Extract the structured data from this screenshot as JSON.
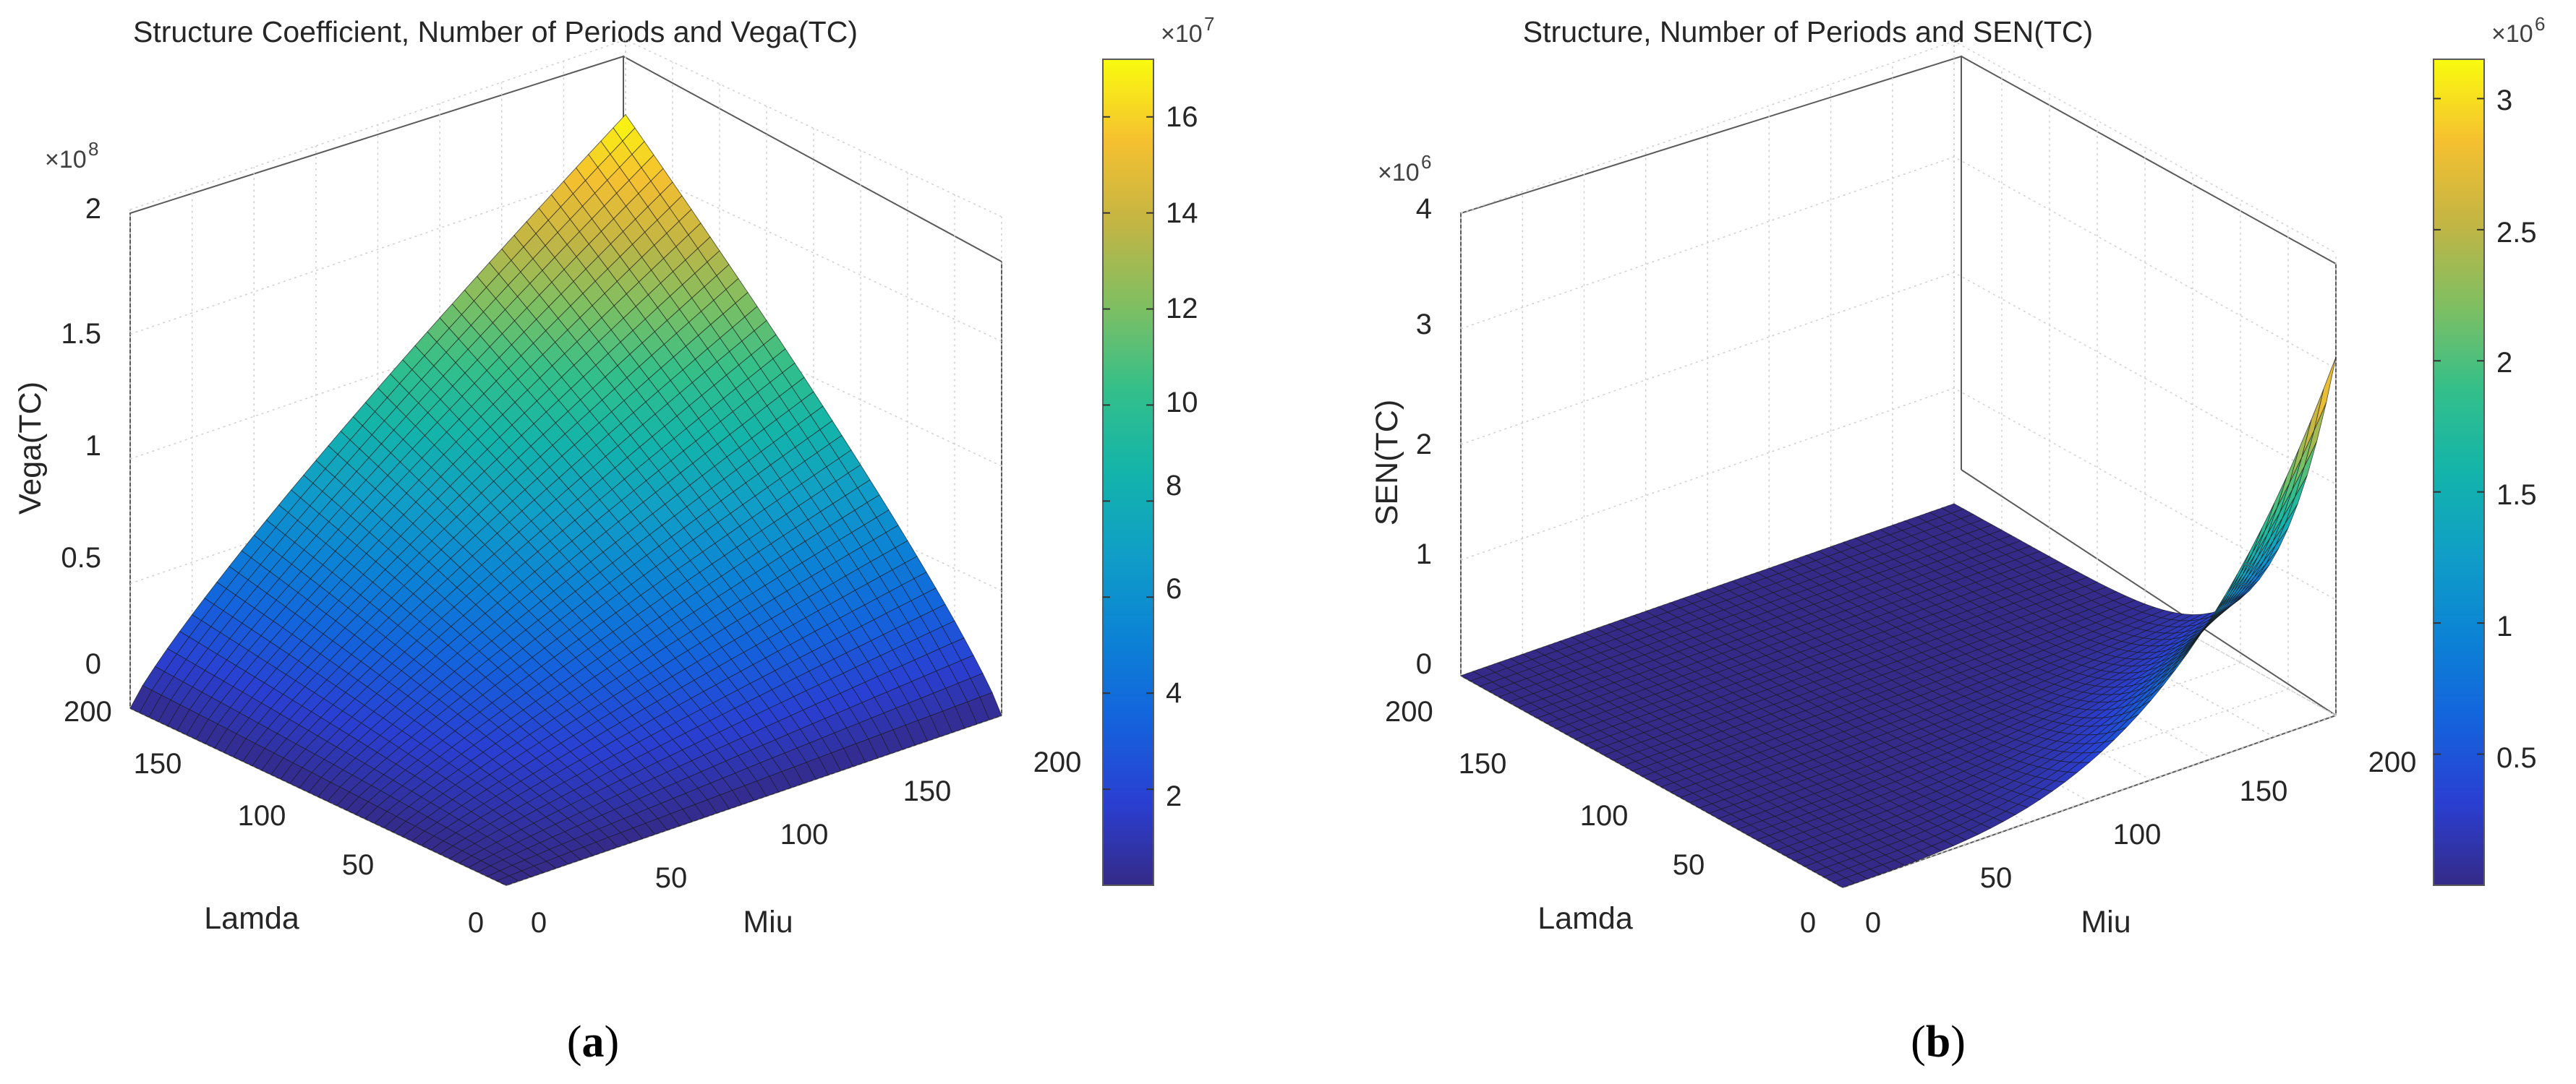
{
  "chart_data": [
    {
      "type": "surface",
      "panel_label": "(a)",
      "panel_letter": "a",
      "title": "Structure Coefficient, Number of Periods and Vega(TC)",
      "xlabel": "Lamda",
      "ylabel": "Miu",
      "zlabel": "Vega(TC)",
      "x_range": [
        0,
        200
      ],
      "y_range": [
        0,
        200
      ],
      "z_range": [
        0,
        200000000.0
      ],
      "x_ticks": [
        "0",
        "50",
        "100",
        "150",
        "200"
      ],
      "y_ticks": [
        "0",
        "50",
        "100",
        "150",
        "200"
      ],
      "z_ticks": [
        "0",
        "0.5",
        "1",
        "1.5",
        "2"
      ],
      "z_exponent_label": "×10",
      "z_exponent": "8",
      "colorbar": {
        "range": [
          0,
          170000000.0
        ],
        "ticks": [
          "2",
          "4",
          "6",
          "8",
          "10",
          "12",
          "14",
          "16"
        ],
        "exponent_label": "×10",
        "exponent": "7"
      },
      "grid": true,
      "surface_description": "Vega(TC) grows with Lamda x Miu; peak ~1.7e8 at Lamda=200, Miu=200",
      "sample_points": [
        {
          "lamda": 0,
          "miu": 0,
          "value": 0
        },
        {
          "lamda": 200,
          "miu": 0,
          "value": 0
        },
        {
          "lamda": 0,
          "miu": 200,
          "value": 0
        },
        {
          "lamda": 100,
          "miu": 100,
          "value": 54000000.0
        },
        {
          "lamda": 200,
          "miu": 100,
          "value": 100000000.0
        },
        {
          "lamda": 100,
          "miu": 200,
          "value": 100000000.0
        },
        {
          "lamda": 200,
          "miu": 200,
          "value": 170000000.0
        }
      ]
    },
    {
      "type": "surface",
      "panel_label": "(b)",
      "panel_letter": "b",
      "title": "Structure, Number of Periods and SEN(TC)",
      "xlabel": "Lamda",
      "ylabel": "Miu",
      "zlabel": "SEN(TC)",
      "x_range": [
        0,
        200
      ],
      "y_range": [
        0,
        200
      ],
      "z_range": [
        0,
        4000000.0
      ],
      "x_ticks": [
        "0",
        "50",
        "100",
        "150",
        "200"
      ],
      "y_ticks": [
        "0",
        "50",
        "100",
        "150",
        "200"
      ],
      "z_ticks": [
        "0",
        "1",
        "2",
        "3",
        "4"
      ],
      "z_exponent_label": "×10",
      "z_exponent": "6",
      "colorbar": {
        "range": [
          0,
          3150000.0
        ],
        "ticks": [
          "0.5",
          "1",
          "1.5",
          "2",
          "2.5",
          "3"
        ],
        "exponent_label": "×10",
        "exponent": "6"
      },
      "grid": true,
      "surface_description": "SEN(TC) is near zero across most of the domain and rises sharply near Lamda=0 as Miu approaches 200, peaking around 3.1e6",
      "sample_points": [
        {
          "lamda": 200,
          "miu": 0,
          "value": 0
        },
        {
          "lamda": 200,
          "miu": 200,
          "value": 0
        },
        {
          "lamda": 0,
          "miu": 0,
          "value": 0
        },
        {
          "lamda": 0,
          "miu": 100,
          "value": 200000.0
        },
        {
          "lamda": 0,
          "miu": 150,
          "value": 600000.0
        },
        {
          "lamda": 0,
          "miu": 200,
          "value": 3100000.0
        }
      ]
    }
  ]
}
